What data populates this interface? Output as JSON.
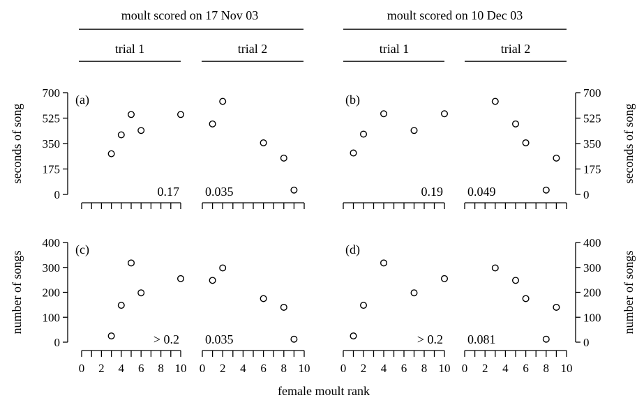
{
  "headers": {
    "left": "moult scored on 17 Nov 03",
    "right": "moult scored on 10 Dec 03",
    "trial1": "trial 1",
    "trial2": "trial 2"
  },
  "x_axis_title": "female moult rank",
  "chart_data": [
    {
      "type": "scatter",
      "panel": "a",
      "panel_label": "(a)",
      "moult_scored": "17 Nov 03",
      "ylabel": "seconds of song",
      "yticks": [
        0,
        175,
        350,
        525,
        700
      ],
      "ylim": [
        0,
        700
      ],
      "xlim": [
        0,
        10
      ],
      "xticks": [
        0,
        2,
        4,
        6,
        8,
        10
      ],
      "series": [
        {
          "trial": "trial 1",
          "p_value": "0.17",
          "x": [
            3,
            4,
            5,
            6,
            10
          ],
          "y": [
            280,
            410,
            550,
            440,
            550
          ]
        },
        {
          "trial": "trial 2",
          "p_value": "0.035",
          "x": [
            1,
            2,
            6,
            8,
            9
          ],
          "y": [
            485,
            640,
            355,
            250,
            30
          ]
        }
      ]
    },
    {
      "type": "scatter",
      "panel": "b",
      "panel_label": "(b)",
      "moult_scored": "10 Dec 03",
      "ylabel": "seconds of song",
      "yticks": [
        0,
        175,
        350,
        525,
        700
      ],
      "ylim": [
        0,
        700
      ],
      "xlim": [
        0,
        10
      ],
      "xticks": [
        0,
        2,
        4,
        6,
        8,
        10
      ],
      "series": [
        {
          "trial": "trial 1",
          "p_value": "0.19",
          "x": [
            1,
            2,
            4,
            7,
            10
          ],
          "y": [
            285,
            415,
            555,
            440,
            555
          ]
        },
        {
          "trial": "trial 2",
          "p_value": "0.049",
          "x": [
            3,
            5,
            6,
            8,
            9
          ],
          "y": [
            640,
            485,
            355,
            30,
            250
          ]
        }
      ]
    },
    {
      "type": "scatter",
      "panel": "c",
      "panel_label": "(c)",
      "moult_scored": "17 Nov 03",
      "ylabel": "number of songs",
      "yticks": [
        0,
        100,
        200,
        300,
        400
      ],
      "ylim": [
        0,
        400
      ],
      "xlim": [
        0,
        10
      ],
      "xticks": [
        0,
        2,
        4,
        6,
        8,
        10
      ],
      "series": [
        {
          "trial": "trial 1",
          "p_value": "> 0.2",
          "x": [
            3,
            4,
            5,
            6,
            10
          ],
          "y": [
            25,
            148,
            318,
            198,
            255
          ]
        },
        {
          "trial": "trial 2",
          "p_value": "0.035",
          "x": [
            1,
            2,
            6,
            8,
            9
          ],
          "y": [
            248,
            298,
            175,
            140,
            12
          ]
        }
      ]
    },
    {
      "type": "scatter",
      "panel": "d",
      "panel_label": "(d)",
      "moult_scored": "10 Dec 03",
      "ylabel": "number of songs",
      "yticks": [
        0,
        100,
        200,
        300,
        400
      ],
      "ylim": [
        0,
        400
      ],
      "xlim": [
        0,
        10
      ],
      "xticks": [
        0,
        2,
        4,
        6,
        8,
        10
      ],
      "series": [
        {
          "trial": "trial 1",
          "p_value": "> 0.2",
          "x": [
            1,
            2,
            4,
            7,
            10
          ],
          "y": [
            25,
            148,
            318,
            198,
            255
          ]
        },
        {
          "trial": "trial 2",
          "p_value": "0.081",
          "x": [
            3,
            5,
            6,
            8,
            9
          ],
          "y": [
            298,
            248,
            175,
            12,
            140
          ]
        }
      ]
    }
  ]
}
